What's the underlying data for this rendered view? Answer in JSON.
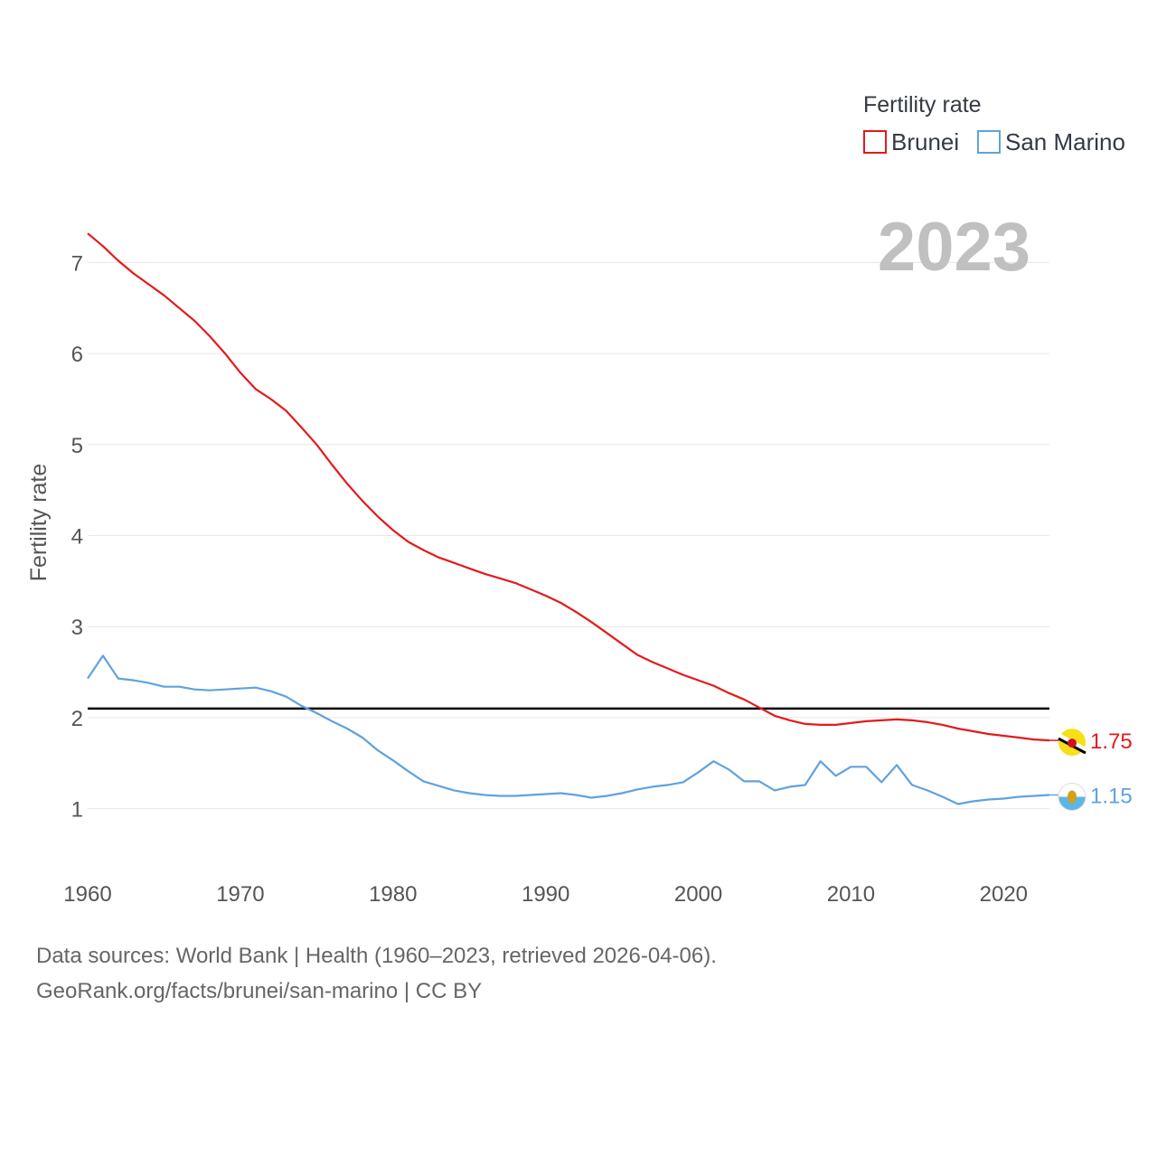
{
  "chart_data": {
    "type": "line",
    "title": "2023",
    "ylabel": "Fertility rate",
    "xlabel": "",
    "xlim": [
      1960,
      2023
    ],
    "ylim": [
      0.4,
      7.6
    ],
    "x_ticks": [
      1960,
      1970,
      1980,
      1990,
      2000,
      2010,
      2020
    ],
    "y_ticks": [
      1,
      2,
      3,
      4,
      5,
      6,
      7
    ],
    "grid": true,
    "legend": {
      "title": "Fertility rate",
      "placement": "top-right",
      "items": [
        {
          "label": "Brunei",
          "color": "#e31a1c"
        },
        {
          "label": "San Marino",
          "color": "#5fa2e0"
        }
      ]
    },
    "reference_line": {
      "value": 2.1,
      "label": "",
      "color": "#000000"
    },
    "x": [
      1960,
      1961,
      1962,
      1963,
      1964,
      1965,
      1966,
      1967,
      1968,
      1969,
      1970,
      1971,
      1972,
      1973,
      1974,
      1975,
      1976,
      1977,
      1978,
      1979,
      1980,
      1981,
      1982,
      1983,
      1984,
      1985,
      1986,
      1987,
      1988,
      1989,
      1990,
      1991,
      1992,
      1993,
      1994,
      1995,
      1996,
      1997,
      1998,
      1999,
      2000,
      2001,
      2002,
      2003,
      2004,
      2005,
      2006,
      2007,
      2008,
      2009,
      2010,
      2011,
      2012,
      2013,
      2014,
      2015,
      2016,
      2017,
      2018,
      2019,
      2020,
      2021,
      2022,
      2023
    ],
    "series": [
      {
        "name": "Brunei",
        "color": "#e31a1c",
        "end_label": "1.75",
        "values": [
          7.32,
          7.18,
          7.02,
          6.88,
          6.76,
          6.64,
          6.5,
          6.36,
          6.19,
          6.0,
          5.79,
          5.61,
          5.5,
          5.37,
          5.19,
          5.0,
          4.78,
          4.57,
          4.38,
          4.21,
          4.06,
          3.93,
          3.84,
          3.76,
          3.7,
          3.64,
          3.58,
          3.53,
          3.48,
          3.41,
          3.34,
          3.26,
          3.16,
          3.05,
          2.93,
          2.81,
          2.69,
          2.61,
          2.54,
          2.47,
          2.41,
          2.35,
          2.27,
          2.2,
          2.11,
          2.02,
          1.97,
          1.93,
          1.92,
          1.92,
          1.94,
          1.96,
          1.97,
          1.98,
          1.97,
          1.95,
          1.92,
          1.88,
          1.85,
          1.82,
          1.8,
          1.78,
          1.76,
          1.75
        ]
      },
      {
        "name": "San Marino",
        "color": "#5fa2e0",
        "end_label": "1.15",
        "values": [
          2.43,
          2.68,
          2.43,
          2.41,
          2.38,
          2.34,
          2.34,
          2.31,
          2.3,
          2.31,
          2.32,
          2.33,
          2.29,
          2.23,
          2.13,
          2.05,
          1.96,
          1.88,
          1.78,
          1.64,
          1.53,
          1.41,
          1.3,
          1.25,
          1.2,
          1.17,
          1.15,
          1.14,
          1.14,
          1.15,
          1.16,
          1.17,
          1.15,
          1.12,
          1.14,
          1.17,
          1.21,
          1.24,
          1.26,
          1.29,
          1.4,
          1.52,
          1.43,
          1.3,
          1.3,
          1.2,
          1.24,
          1.26,
          1.52,
          1.36,
          1.46,
          1.46,
          1.29,
          1.48,
          1.26,
          1.2,
          1.13,
          1.05,
          1.08,
          1.1,
          1.11,
          1.13,
          1.14,
          1.15
        ]
      }
    ]
  },
  "footer": {
    "source_line": "Data sources: World Bank | Health (1960–2023, retrieved 2026-04-06).",
    "url_line": "GeoRank.org/facts/brunei/san-marino | CC BY"
  }
}
